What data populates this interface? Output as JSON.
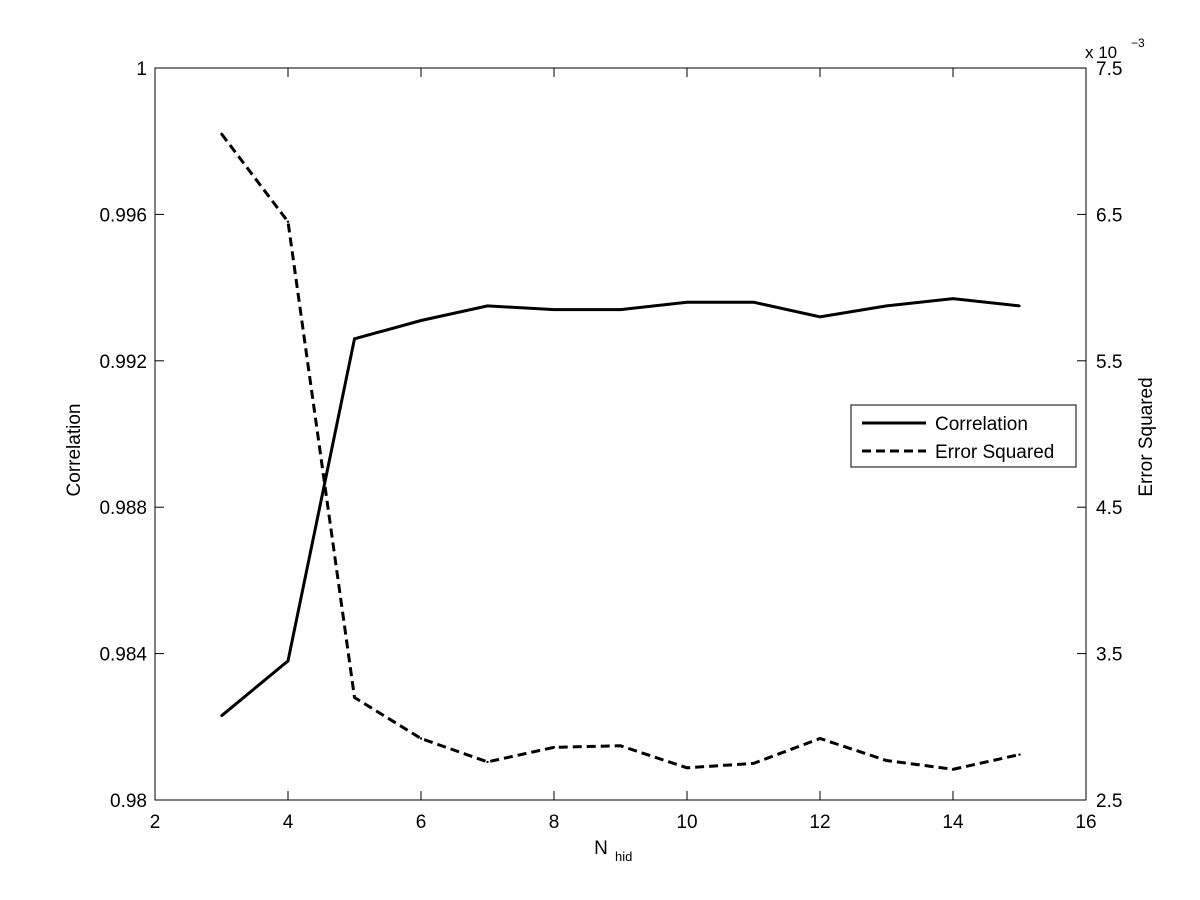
{
  "chart_data": {
    "type": "line",
    "xlabel_main": "N",
    "xlabel_sub": "hid",
    "ylabel_left": "Correlation",
    "ylabel_right": "Error Squared",
    "right_axis_multiplier_base": "x 10",
    "right_axis_multiplier_exp": "−3",
    "xlim": [
      2,
      16
    ],
    "ylim_left": [
      0.98,
      1.0
    ],
    "ylim_right": [
      2.5,
      7.5
    ],
    "xticks": [
      2,
      4,
      6,
      8,
      10,
      12,
      14,
      16
    ],
    "xtick_labels": [
      "2",
      "4",
      "6",
      "8",
      "10",
      "12",
      "14",
      "16"
    ],
    "yticks_left": [
      0.98,
      0.984,
      0.988,
      0.992,
      0.996,
      1.0
    ],
    "ytick_labels_left": [
      "0.98",
      "0.984",
      "0.988",
      "0.992",
      "0.996",
      "1"
    ],
    "yticks_right": [
      2.5,
      3.5,
      4.5,
      5.5,
      6.5,
      7.5
    ],
    "ytick_labels_right": [
      "2.5",
      "3.5",
      "4.5",
      "5.5",
      "6.5",
      "7.5"
    ],
    "x": [
      3,
      4,
      5,
      6,
      7,
      8,
      9,
      10,
      11,
      12,
      13,
      14,
      15
    ],
    "series": [
      {
        "name": "Correlation",
        "axis": "left",
        "style": "solid",
        "values": [
          0.9823,
          0.9838,
          0.9926,
          0.9931,
          0.9935,
          0.9934,
          0.9934,
          0.9936,
          0.9936,
          0.9932,
          0.9935,
          0.9937,
          0.9935
        ]
      },
      {
        "name": "Error Squared",
        "axis": "right",
        "style": "dashed",
        "values": [
          7.05,
          6.45,
          3.2,
          2.92,
          2.76,
          2.86,
          2.87,
          2.72,
          2.75,
          2.92,
          2.77,
          2.71,
          2.81
        ]
      }
    ],
    "legend_placement": "center-right",
    "grid": false,
    "line_color": "#000000",
    "background": "#ffffff"
  }
}
